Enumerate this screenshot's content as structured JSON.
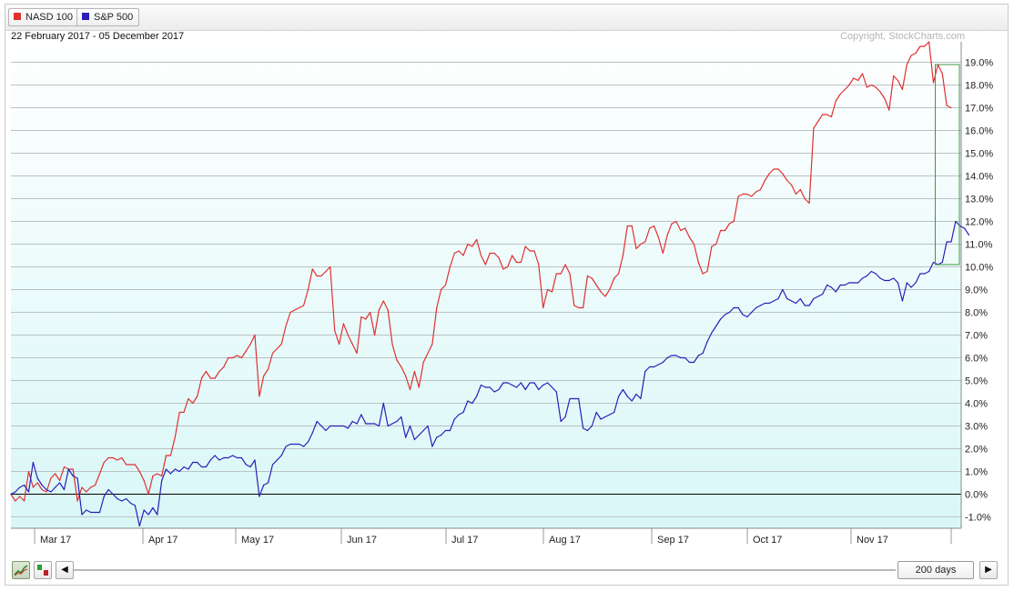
{
  "legend": [
    {
      "label": "NASD 100",
      "color": "#e03030"
    },
    {
      "label": "S&P 500",
      "color": "#2a1fb8"
    }
  ],
  "date_range": "22 February 2017 - 05 December 2017",
  "copyright": "Copyright, StockCharts.com",
  "controls": {
    "prev_icon": "left-arrow-icon",
    "next_icon": "right-arrow-icon",
    "line_chart_icon": "line-chart-icon",
    "bar_chart_icon": "bar-chart-icon",
    "range_label": "200 days"
  },
  "chart_data": {
    "type": "line",
    "x_tick_labels": [
      "Mar 17",
      "Apr 17",
      "May 17",
      "Jun 17",
      "Jul 17",
      "Aug 17",
      "Sep 17",
      "Oct 17",
      "Nov 17"
    ],
    "y_tick_labels": [
      "-1.0%",
      "0.0%",
      "1.0%",
      "2.0%",
      "3.0%",
      "4.0%",
      "5.0%",
      "6.0%",
      "7.0%",
      "8.0%",
      "9.0%",
      "10.0%",
      "11.0%",
      "12.0%",
      "13.0%",
      "14.0%",
      "15.0%",
      "16.0%",
      "17.0%",
      "18.0%",
      "19.0%"
    ],
    "ylim": [
      -1.5,
      19.9
    ],
    "y_unit": "%",
    "zero_line": 0,
    "grid": true,
    "series": [
      {
        "name": "NASD 100",
        "color": "#e03030",
        "values": [
          0.0,
          -0.3,
          -0.1,
          -0.3,
          1.0,
          0.3,
          0.5,
          0.2,
          0.1,
          0.7,
          0.9,
          0.6,
          1.2,
          1.1,
          1.1,
          -0.3,
          0.3,
          0.1,
          0.3,
          0.4,
          0.9,
          1.4,
          1.6,
          1.6,
          1.5,
          1.6,
          1.3,
          1.3,
          1.3,
          1.0,
          0.6,
          0.0,
          0.8,
          0.9,
          0.8,
          1.7,
          1.7,
          2.5,
          3.6,
          3.6,
          4.2,
          4.0,
          4.3,
          5.1,
          5.4,
          5.1,
          5.1,
          5.4,
          5.6,
          6.0,
          6.0,
          6.1,
          6.0,
          6.3,
          6.6,
          7.0,
          4.3,
          5.2,
          5.5,
          6.2,
          6.4,
          6.6,
          7.4,
          8.0,
          8.1,
          8.2,
          8.3,
          9.0,
          9.9,
          9.6,
          9.6,
          9.8,
          10.0,
          7.2,
          6.6,
          7.5,
          7.0,
          6.6,
          6.2,
          7.8,
          7.7,
          8.0,
          7.0,
          8.1,
          8.5,
          8.1,
          6.6,
          5.9,
          5.6,
          5.2,
          4.6,
          5.4,
          4.7,
          5.8,
          6.2,
          6.6,
          8.2,
          9.0,
          9.2,
          10.0,
          10.6,
          10.7,
          10.5,
          11.0,
          10.9,
          11.2,
          10.5,
          10.1,
          10.6,
          10.6,
          10.4,
          9.9,
          10.0,
          10.5,
          10.2,
          10.2,
          10.9,
          10.7,
          10.7,
          10.1,
          8.2,
          9.0,
          8.9,
          9.7,
          9.7,
          10.1,
          9.7,
          8.3,
          8.2,
          8.2,
          9.6,
          9.5,
          9.2,
          8.9,
          8.7,
          9.0,
          9.5,
          9.7,
          10.5,
          11.8,
          11.8,
          10.8,
          11.0,
          11.1,
          11.7,
          11.8,
          11.3,
          10.6,
          11.4,
          11.9,
          12.0,
          11.6,
          11.7,
          11.3,
          11.0,
          10.2,
          9.7,
          9.8,
          10.9,
          11.0,
          11.6,
          11.6,
          11.9,
          12.0,
          13.1,
          13.2,
          13.2,
          13.1,
          13.3,
          13.4,
          13.8,
          14.1,
          14.3,
          14.3,
          14.1,
          13.8,
          13.6,
          13.2,
          13.4,
          13.0,
          12.8,
          16.1,
          16.4,
          16.7,
          16.7,
          16.6,
          17.3,
          17.6,
          17.8,
          18.0,
          18.3,
          18.2,
          18.5,
          17.9,
          18.0,
          17.9,
          17.7,
          17.4,
          16.9,
          18.4,
          18.2,
          17.8,
          18.9,
          19.3,
          19.4,
          19.7,
          19.7,
          19.9,
          18.1,
          18.9,
          18.5,
          17.1,
          17.0
        ]
      },
      {
        "name": "S&P 500",
        "color": "#2a1fb8",
        "values": [
          0.0,
          0.1,
          0.3,
          0.4,
          0.1,
          1.4,
          0.7,
          0.4,
          0.2,
          0.1,
          0.3,
          0.5,
          0.2,
          1.1,
          0.8,
          0.7,
          -0.9,
          -0.7,
          -0.8,
          -0.8,
          -0.8,
          -0.1,
          0.2,
          0.0,
          -0.2,
          -0.3,
          -0.2,
          -0.4,
          -0.5,
          -1.4,
          -0.7,
          -0.9,
          -0.6,
          -0.9,
          0.6,
          1.1,
          0.9,
          1.1,
          1.0,
          1.2,
          1.1,
          1.4,
          1.4,
          1.2,
          1.2,
          1.5,
          1.7,
          1.5,
          1.6,
          1.6,
          1.7,
          1.6,
          1.6,
          1.3,
          1.2,
          1.5,
          -0.1,
          0.4,
          0.5,
          1.3,
          1.5,
          1.7,
          2.1,
          2.2,
          2.2,
          2.2,
          2.1,
          2.3,
          2.7,
          3.2,
          3.0,
          2.8,
          3.0,
          3.0,
          3.0,
          3.0,
          2.9,
          3.2,
          3.1,
          3.5,
          3.1,
          3.1,
          3.1,
          3.0,
          4.0,
          3.0,
          3.1,
          3.2,
          3.4,
          2.5,
          3.0,
          2.4,
          2.6,
          2.8,
          3.0,
          2.1,
          2.5,
          2.6,
          2.8,
          2.8,
          3.3,
          3.5,
          3.6,
          4.1,
          4.0,
          4.3,
          4.8,
          4.7,
          4.7,
          4.5,
          4.6,
          4.9,
          4.9,
          4.8,
          4.7,
          4.9,
          4.6,
          4.9,
          4.9,
          4.6,
          4.8,
          4.9,
          4.7,
          4.5,
          3.2,
          3.4,
          4.2,
          4.2,
          4.2,
          2.9,
          2.8,
          3.0,
          3.6,
          3.3,
          3.4,
          3.5,
          3.6,
          4.3,
          4.6,
          4.3,
          4.1,
          4.4,
          4.2,
          5.4,
          5.6,
          5.6,
          5.7,
          5.8,
          6.0,
          6.1,
          6.1,
          6.0,
          6.0,
          5.8,
          5.8,
          6.1,
          6.2,
          6.7,
          7.1,
          7.4,
          7.7,
          7.9,
          8.0,
          8.2,
          8.2,
          7.9,
          7.8,
          8.0,
          8.2,
          8.3,
          8.4,
          8.4,
          8.5,
          8.6,
          9.0,
          8.6,
          8.5,
          8.4,
          8.6,
          8.3,
          8.3,
          8.6,
          8.7,
          8.8,
          9.2,
          9.1,
          8.9,
          9.2,
          9.2,
          9.3,
          9.3,
          9.3,
          9.5,
          9.6,
          9.8,
          9.7,
          9.5,
          9.4,
          9.4,
          9.5,
          9.3,
          8.5,
          9.3,
          9.1,
          9.3,
          9.7,
          9.7,
          9.8,
          10.2,
          10.1,
          10.2,
          11.1,
          11.1,
          12.0,
          11.8,
          11.7,
          11.4
        ]
      }
    ]
  }
}
